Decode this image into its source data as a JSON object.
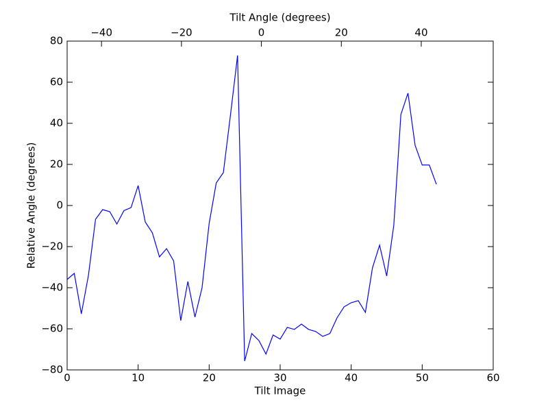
{
  "chart_data": {
    "type": "line",
    "xlabel": "Tilt Image",
    "ylabel": "Relative Angle (degrees)",
    "x2label": "Tilt Angle (degrees)",
    "x": [
      0,
      1,
      2,
      3,
      4,
      5,
      6,
      7,
      8,
      9,
      10,
      11,
      12,
      13,
      14,
      15,
      16,
      17,
      18,
      19,
      20,
      21,
      22,
      23,
      24,
      25,
      26,
      27,
      28,
      29,
      30,
      31,
      32,
      33,
      34,
      35,
      36,
      37,
      38,
      39,
      40,
      41,
      42,
      43,
      44,
      45,
      46,
      47,
      48,
      49,
      50,
      51,
      52
    ],
    "series": [
      {
        "color": "#0000ff",
        "values": [
          -36,
          -33,
          -52.7,
          -34,
          -6.7,
          -2,
          -3,
          -9,
          -2.5,
          -1,
          9.7,
          -8,
          -13.3,
          -25,
          -21,
          -27,
          -56,
          -37,
          -54.3,
          -40,
          -8.7,
          11,
          16,
          44,
          73,
          -75.7,
          -62.3,
          -65.7,
          -72.3,
          -63,
          -65,
          -59.3,
          -60.3,
          -57.7,
          -60.3,
          -61.3,
          -63.7,
          -62.3,
          -54.7,
          -49.3,
          -47.3,
          -46.3,
          -52,
          -30.3,
          -19.3,
          -34.3,
          -9.7,
          44.3,
          54.7,
          29.3,
          19.7,
          19.7,
          10.3
        ]
      }
    ],
    "xlim": [
      0,
      60
    ],
    "xticks": [
      0,
      10,
      20,
      30,
      40,
      50,
      60
    ],
    "ylim": [
      -80,
      80
    ],
    "yticks": [
      {
        "value": -80,
        "label": "−80"
      },
      {
        "value": -60,
        "label": "−60"
      },
      {
        "value": -40,
        "label": "−40"
      },
      {
        "value": -20,
        "label": "−20"
      },
      0,
      20,
      40,
      60,
      80
    ],
    "x2lim": [
      -48.6,
      58
    ],
    "x2ticks": [
      {
        "value": -40,
        "label": "−40"
      },
      {
        "value": -20,
        "label": "−20"
      },
      0,
      20,
      40
    ]
  }
}
